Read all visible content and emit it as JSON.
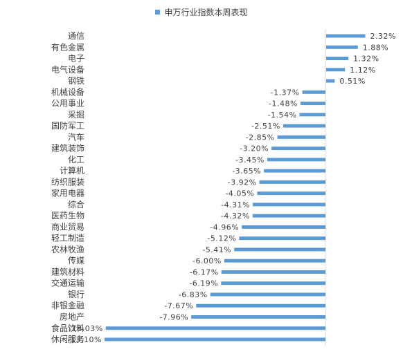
{
  "chart_data": {
    "type": "bar",
    "orientation": "horizontal",
    "legend_position": "top",
    "grid": false,
    "series": [
      {
        "name": "申万行业指数本周表现",
        "color": "#5b9bd5"
      }
    ],
    "categories": [
      "通信",
      "有色金属",
      "电子",
      "电气设备",
      "钢铁",
      "机械设备",
      "公用事业",
      "采掘",
      "国防军工",
      "汽车",
      "建筑装饰",
      "化工",
      "计算机",
      "纺织服装",
      "家用电器",
      "综合",
      "医药生物",
      "商业贸易",
      "轻工制造",
      "农林牧渔",
      "传媒",
      "建筑材料",
      "交通运输",
      "银行",
      "非银金融",
      "房地产",
      "食品饮料",
      "休闲服务"
    ],
    "values": [
      2.32,
      1.88,
      1.32,
      1.12,
      0.51,
      -1.37,
      -1.48,
      -1.54,
      -2.51,
      -2.85,
      -3.2,
      -3.45,
      -3.65,
      -3.92,
      -4.05,
      -4.31,
      -4.32,
      -4.96,
      -5.12,
      -5.41,
      -6.0,
      -6.17,
      -6.19,
      -6.83,
      -7.67,
      -7.96,
      -13.03,
      -13.1
    ],
    "value_labels": [
      "2.32%",
      "1.88%",
      "1.32%",
      "1.12%",
      "0.51%",
      "-1.37%",
      "-1.48%",
      "-1.54%",
      "-2.51%",
      "-2.85%",
      "-3.20%",
      "-3.45%",
      "-3.65%",
      "-3.92%",
      "-4.05%",
      "-4.31%",
      "-4.32%",
      "-4.96%",
      "-5.12%",
      "-5.41%",
      "-6.00%",
      "-6.17%",
      "-6.19%",
      "-6.83%",
      "-7.67%",
      "-7.96%",
      "-13.03%",
      "-13.10%"
    ],
    "label_color": "#404040",
    "axis_color": "#d9d9d9"
  }
}
